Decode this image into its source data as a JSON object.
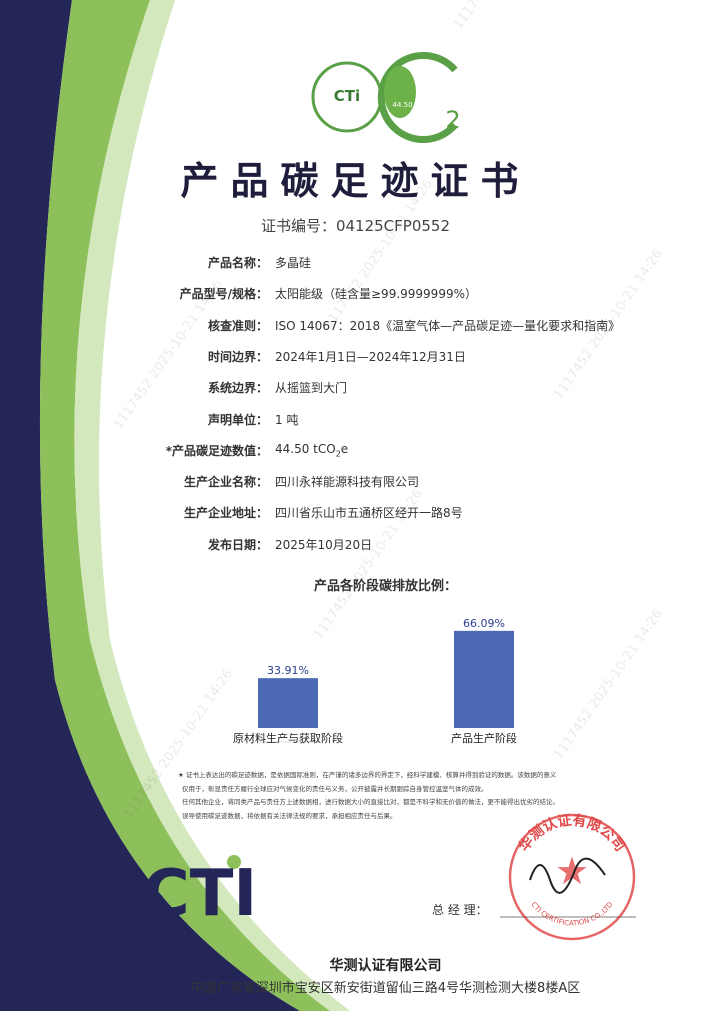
{
  "logo": {
    "brand": "CTi",
    "value": "44.50 t",
    "sub": "2"
  },
  "header": {
    "title": "产品碳足迹证书",
    "cert_no": "证书编号：04125CFP0552"
  },
  "fields": [
    {
      "label": "产品名称：",
      "value": "多晶硅"
    },
    {
      "label": "产品型号/规格：",
      "value": "太阳能级（硅含量≥99.9999999%）"
    },
    {
      "label": "核查准则：",
      "value": "ISO 14067：2018《温室气体—产品碳足迹—量化要求和指南》"
    },
    {
      "label": "时间边界：",
      "value": "2024年1月1日—2024年12月31日"
    },
    {
      "label": "系统边界：",
      "value": "从摇篮到大门"
    },
    {
      "label": "声明单位：",
      "value": "1 吨"
    },
    {
      "label": "*产品碳足迹数值：",
      "value": "44.50 tCO",
      "sub": "2",
      "suffix": "e"
    },
    {
      "label": "生产企业名称：",
      "value": "四川永祥能源科技有限公司"
    },
    {
      "label": "生产企业地址：",
      "value": "四川省乐山市五通桥区经开一路8号"
    },
    {
      "label": "发布日期：",
      "value": "2025年10月20日"
    }
  ],
  "chart_data": {
    "type": "bar",
    "title": "产品各阶段碳排放比例：",
    "categories": [
      "原材料生产与获取阶段",
      "产品生产阶段"
    ],
    "values": [
      33.91,
      66.09
    ],
    "value_labels": [
      "33.91%",
      "66.09%"
    ],
    "color": "#4b6ab3"
  },
  "notes": [
    "★ 证书上表达出的碳足迹数据，是依据国际准则，在严谨的诸多边界的界定下，经科学建模、核算并得到验证的数据。该数据的意义",
    "仅用于，彰显责任方履行全球应对气候变化的责任与义务，公开披露并长期跟踪自身管控温室气体的成效。",
    "任何其他企业，将同类产品与责任方上述数据相，进行数据大小的直接比对，都是不科学和无价值的做法，更不能得出优劣的结论。",
    "误导使用碳足迹数据，将依据有关法律法规的要求，承担相应责任与后果。"
  ],
  "brand_logo": "CTI",
  "signature_label": "总 经 理：",
  "stamp": {
    "name": "华测认证有限公司",
    "english": "CTI CERTIFICATION CO.,LTD"
  },
  "watermark": "1117452 2025-10-21 14:26",
  "footer": {
    "company": "华测认证有限公司",
    "address": "中国广东省深圳市宝安区新安街道留仙三路4号华测检测大楼8楼A区"
  }
}
